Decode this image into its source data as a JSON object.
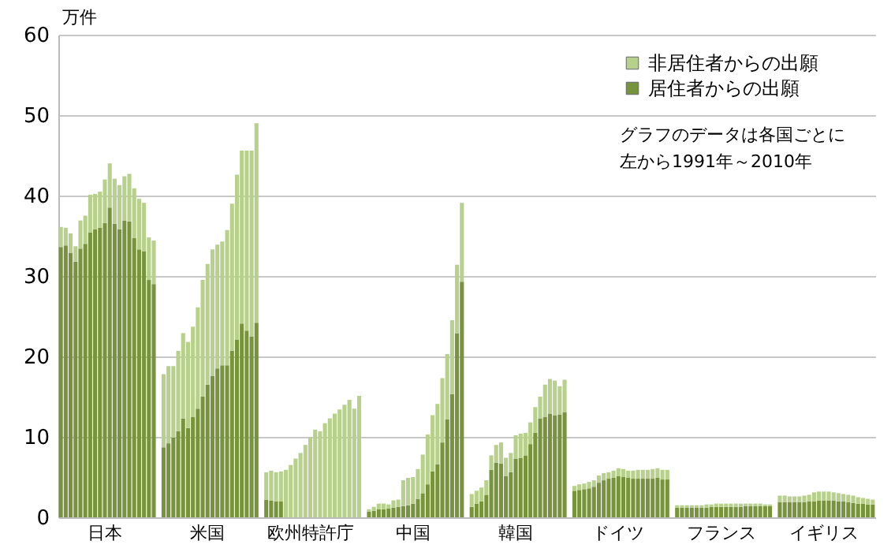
{
  "chart_data": {
    "type": "bar",
    "stacked": true,
    "ylabel": "万件",
    "ylim": [
      0,
      60
    ],
    "yticks": [
      0,
      10,
      20,
      30,
      40,
      50,
      60
    ],
    "grid": "y",
    "legend": "top right",
    "annotations": [
      "グラフのデータは各国ごとに",
      "左から1991年～2010年"
    ],
    "categories": [
      null,
      null,
      null,
      null,
      null,
      null,
      null,
      null,
      null,
      "日本",
      null,
      null,
      null,
      null,
      null,
      null,
      null,
      null,
      null,
      null,
      null,
      null,
      null,
      null,
      null,
      null,
      null,
      null,
      null,
      null,
      "米国",
      null,
      null,
      null,
      null,
      null,
      null,
      null,
      null,
      null,
      null,
      null,
      null,
      null,
      null,
      null,
      null,
      null,
      null,
      null,
      null,
      "欧州特許庁",
      null,
      null,
      null,
      null,
      null,
      null,
      null,
      null,
      null,
      null,
      null,
      null,
      null,
      null,
      null,
      null,
      null,
      null,
      null,
      null,
      "中国",
      null,
      null,
      null,
      null,
      null,
      null,
      null,
      null,
      null,
      null,
      null,
      null,
      null,
      null,
      null,
      null,
      null,
      null,
      null,
      null,
      "韓国",
      null,
      null,
      null,
      null,
      null,
      null,
      null,
      null,
      null,
      null,
      null,
      null,
      null,
      null,
      null,
      null,
      null,
      null,
      null,
      null,
      "ドイツ",
      null,
      null,
      null,
      null,
      null,
      null,
      null,
      null,
      null,
      null,
      null,
      null,
      null,
      null,
      null,
      null,
      null,
      null,
      null,
      null,
      "フランス",
      null,
      null,
      null,
      null,
      null,
      null,
      null,
      null,
      null,
      null,
      null,
      null,
      null,
      null,
      null,
      null,
      null,
      null,
      null,
      null,
      "イギリス",
      null,
      null,
      null,
      null,
      null,
      null,
      null,
      null,
      null,
      null
    ],
    "series": [
      {
        "name": "居住者からの出願",
        "color": "#77933c",
        "values": [
          33.6,
          33.8,
          32.9,
          31.8,
          33.4,
          34.0,
          35.4,
          35.8,
          36.0,
          36.6,
          38.5,
          36.5,
          35.8,
          36.9,
          36.8,
          34.7,
          33.3,
          33.1,
          29.5,
          29.0,
          null,
          8.7,
          9.2,
          9.9,
          10.7,
          12.3,
          11.1,
          12.5,
          13.5,
          15.0,
          16.5,
          17.6,
          18.5,
          18.9,
          18.9,
          20.7,
          22.1,
          24.1,
          23.2,
          22.5,
          24.2,
          null,
          2.2,
          2.1,
          2.0,
          2.0,
          null,
          null,
          null,
          null,
          null,
          null,
          null,
          null,
          null,
          null,
          null,
          null,
          null,
          null,
          null,
          null,
          null,
          0.7,
          0.8,
          1.0,
          1.0,
          1.1,
          1.2,
          1.3,
          1.4,
          1.5,
          1.7,
          2.3,
          3.0,
          4.1,
          5.7,
          6.6,
          9.3,
          12.2,
          15.3,
          22.9,
          29.3,
          null,
          1.3,
          1.7,
          2.0,
          2.8,
          5.9,
          6.8,
          6.7,
          5.1,
          5.6,
          7.3,
          7.4,
          7.7,
          9.1,
          10.5,
          12.3,
          12.5,
          12.9,
          12.7,
          12.8,
          13.1,
          null,
          3.3,
          3.4,
          3.5,
          3.6,
          3.8,
          4.3,
          4.6,
          4.8,
          4.9,
          5.1,
          5.0,
          4.9,
          4.8,
          4.8,
          4.8,
          4.8,
          4.8,
          4.9,
          4.7,
          4.7,
          null,
          1.2,
          1.2,
          1.2,
          1.2,
          1.2,
          1.2,
          1.2,
          1.3,
          1.3,
          1.3,
          1.3,
          1.3,
          1.3,
          1.3,
          1.4,
          1.4,
          1.4,
          1.4,
          1.4,
          1.4,
          null,
          1.9,
          1.9,
          1.9,
          1.9,
          1.9,
          1.9,
          2.0,
          2.0,
          2.1,
          2.1,
          2.1,
          2.1,
          2.0,
          2.0,
          1.9,
          1.8,
          1.7,
          1.7,
          1.6,
          1.6
        ]
      },
      {
        "name": "非居住者からの出願",
        "color": "#b7d08c",
        "values": [
          2.5,
          2.2,
          2.4,
          1.9,
          3.5,
          3.5,
          4.7,
          4.4,
          4.5,
          5.4,
          5.5,
          5.6,
          5.5,
          5.5,
          5.9,
          6.2,
          6.3,
          6.0,
          5.3,
          5.4,
          null,
          9.1,
          9.6,
          8.9,
          10.0,
          10.6,
          10.7,
          11.2,
          12.6,
          14.5,
          15.0,
          15.7,
          15.4,
          15.4,
          16.8,
          18.3,
          20.5,
          21.5,
          22.4,
          23.1,
          24.8,
          null,
          3.4,
          3.7,
          3.6,
          3.7,
          5.9,
          6.5,
          7.3,
          8.0,
          9.0,
          10.0,
          10.9,
          10.7,
          11.7,
          12.3,
          12.9,
          13.4,
          14.0,
          14.6,
          13.5,
          15.1,
          null,
          0.3,
          0.5,
          0.7,
          0.7,
          0.5,
          0.9,
          0.9,
          3.2,
          3.4,
          3.3,
          3.7,
          4.8,
          6.2,
          7.0,
          7.5,
          8.0,
          8.1,
          9.2,
          8.5,
          9.8,
          null,
          1.6,
          1.6,
          1.7,
          1.8,
          1.8,
          2.2,
          2.6,
          2.3,
          2.4,
          2.9,
          3.0,
          2.8,
          2.7,
          3.2,
          2.7,
          4.0,
          4.3,
          4.3,
          3.5,
          4.0,
          null,
          0.6,
          0.7,
          0.7,
          0.8,
          0.8,
          0.9,
          0.9,
          0.8,
          0.9,
          1.0,
          1.0,
          0.9,
          1.0,
          1.1,
          1.1,
          1.1,
          1.2,
          1.2,
          1.2,
          1.2,
          null,
          0.3,
          0.3,
          0.3,
          0.3,
          0.3,
          0.3,
          0.4,
          0.3,
          0.4,
          0.4,
          0.4,
          0.4,
          0.4,
          0.4,
          0.3,
          0.3,
          0.3,
          0.3,
          0.2,
          0.2,
          null,
          0.8,
          0.8,
          0.7,
          0.7,
          0.7,
          0.8,
          0.8,
          1.1,
          1.1,
          1.1,
          1.1,
          1.0,
          1.0,
          0.9,
          0.9,
          0.9,
          0.8,
          0.7,
          0.7,
          0.6
        ]
      }
    ]
  }
}
